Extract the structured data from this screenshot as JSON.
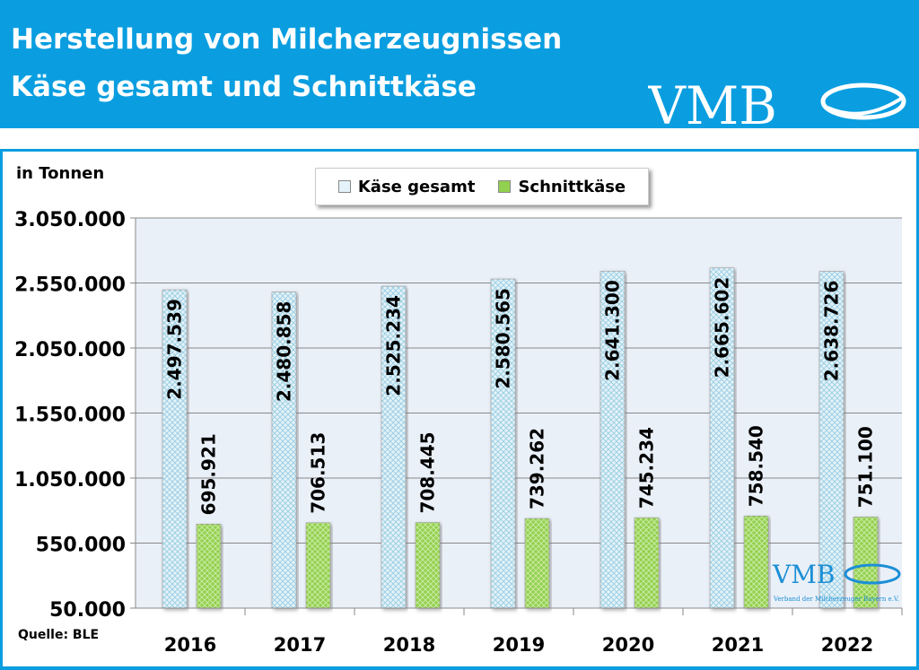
{
  "header": {
    "title_line1": "Herstellung von Milcherzeugnissen",
    "title_line2": "Käse gesamt und Schnittkäse",
    "logo_text": "VMB",
    "watermark_text": "VMB",
    "watermark_subtext": "Verband der Milcherzeuger Bayern e.V."
  },
  "source": "Quelle: BLE",
  "colors": {
    "header": "#0a9ee0",
    "kaese_gesamt": "#cfe9f3",
    "schnittkaese": "#92d050",
    "plot_bg": "#eaf0f8"
  },
  "chart_data": {
    "type": "bar",
    "ylabel": "in Tonnen",
    "categories": [
      "2016",
      "2017",
      "2018",
      "2019",
      "2020",
      "2021",
      "2022"
    ],
    "ylim": [
      50000,
      3050000
    ],
    "yticks": [
      50000,
      550000,
      1050000,
      1550000,
      2050000,
      2550000,
      3050000
    ],
    "ytick_labels": [
      "50.000",
      "550.000",
      "1.050.000",
      "1.550.000",
      "2.050.000",
      "2.550.000",
      "3.050.000"
    ],
    "grid": true,
    "legend": "top",
    "series": [
      {
        "name": "Käse gesamt",
        "values": [
          2497539,
          2480858,
          2525234,
          2580565,
          2641300,
          2665602,
          2638726
        ],
        "labels": [
          "2.497.539",
          "2.480.858",
          "2.525.234",
          "2.580.565",
          "2.641.300",
          "2.665.602",
          "2.638.726"
        ]
      },
      {
        "name": "Schnittkäse",
        "values": [
          695921,
          706513,
          708445,
          739262,
          745234,
          758540,
          751100
        ],
        "labels": [
          "695.921",
          "706.513",
          "708.445",
          "739.262",
          "745.234",
          "758.540",
          "751.100"
        ]
      }
    ]
  }
}
